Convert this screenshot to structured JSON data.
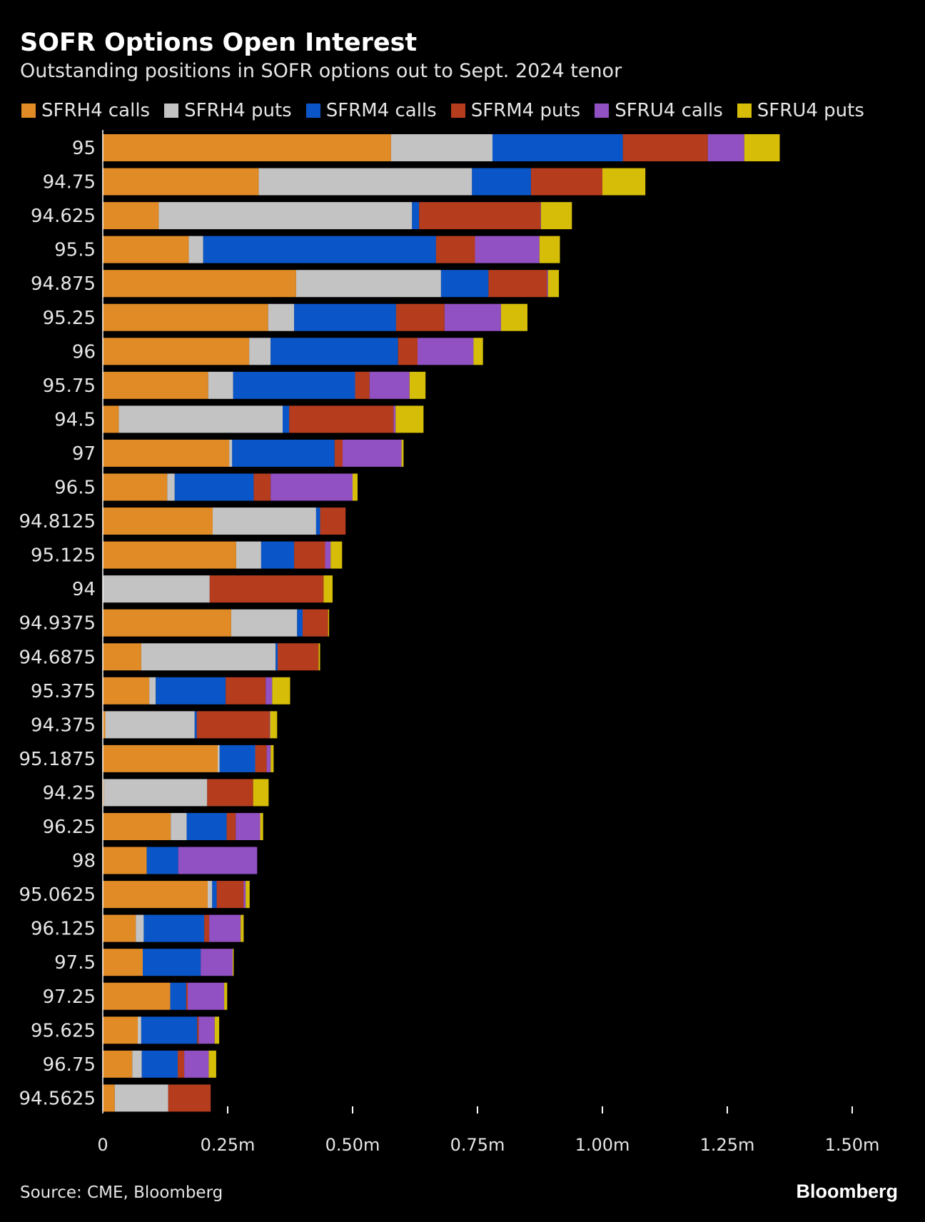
{
  "title": "SOFR Options Open Interest",
  "subtitle": "Outstanding positions in SOFR options out to Sept. 2024 tenor",
  "source": "Source: CME, Bloomberg",
  "brand": "Bloomberg",
  "colors": [
    "#e08b26",
    "#c3c3c3",
    "#0a56c8",
    "#b53d1e",
    "#9251c2",
    "#d6bd08"
  ],
  "chart_data": {
    "type": "bar",
    "orientation": "horizontal",
    "stacked": true,
    "title": "SOFR Options Open Interest",
    "xlabel": "",
    "ylabel": "",
    "xlim": [
      0,
      1.5
    ],
    "x_ticks": [
      0,
      0.25,
      0.5,
      0.75,
      1.0,
      1.25,
      1.5
    ],
    "x_tick_labels": [
      "0",
      "0.25m",
      "0.50m",
      "0.75m",
      "1.00m",
      "1.25m",
      "1.50m"
    ],
    "legend_position": "top",
    "categories": [
      "95",
      "94.75",
      "94.625",
      "95.5",
      "94.875",
      "95.25",
      "96",
      "95.75",
      "94.5",
      "97",
      "96.5",
      "94.8125",
      "95.125",
      "94",
      "94.9375",
      "94.6875",
      "95.375",
      "94.375",
      "95.1875",
      "94.25",
      "96.25",
      "98",
      "95.0625",
      "96.125",
      "97.5",
      "97.25",
      "95.625",
      "96.75",
      "94.5625"
    ],
    "series": [
      {
        "name": "SFRH4 calls",
        "values": [
          0.577,
          0.312,
          0.112,
          0.172,
          0.387,
          0.331,
          0.293,
          0.211,
          0.032,
          0.253,
          0.129,
          0.22,
          0.267,
          0.0,
          0.257,
          0.077,
          0.093,
          0.005,
          0.23,
          0.002,
          0.136,
          0.088,
          0.21,
          0.066,
          0.08,
          0.135,
          0.07,
          0.059,
          0.024
        ]
      },
      {
        "name": "SFRH4 puts",
        "values": [
          0.203,
          0.427,
          0.507,
          0.029,
          0.29,
          0.052,
          0.043,
          0.05,
          0.328,
          0.006,
          0.015,
          0.207,
          0.05,
          0.214,
          0.132,
          0.269,
          0.013,
          0.179,
          0.004,
          0.207,
          0.032,
          0.0,
          0.009,
          0.016,
          0.0,
          0.0,
          0.007,
          0.019,
          0.107
        ]
      },
      {
        "name": "SFRM4 calls",
        "values": [
          0.261,
          0.118,
          0.014,
          0.466,
          0.095,
          0.204,
          0.255,
          0.244,
          0.013,
          0.205,
          0.158,
          0.008,
          0.066,
          0.0,
          0.011,
          0.004,
          0.14,
          0.004,
          0.071,
          0.0,
          0.08,
          0.063,
          0.009,
          0.121,
          0.116,
          0.032,
          0.112,
          0.072,
          0.0
        ]
      },
      {
        "name": "SFRM4 puts",
        "values": [
          0.17,
          0.143,
          0.243,
          0.078,
          0.117,
          0.097,
          0.039,
          0.029,
          0.209,
          0.016,
          0.034,
          0.051,
          0.062,
          0.228,
          0.051,
          0.082,
          0.08,
          0.146,
          0.023,
          0.092,
          0.018,
          0.0,
          0.054,
          0.01,
          0.0,
          0.003,
          0.003,
          0.013,
          0.085
        ]
      },
      {
        "name": "SFRU4 calls",
        "values": [
          0.073,
          0.0,
          0.001,
          0.129,
          0.002,
          0.113,
          0.112,
          0.08,
          0.004,
          0.118,
          0.164,
          0.0,
          0.011,
          0.0,
          0.0,
          0.0,
          0.013,
          0.001,
          0.008,
          0.0,
          0.049,
          0.158,
          0.004,
          0.063,
          0.064,
          0.073,
          0.032,
          0.049,
          0.0
        ]
      },
      {
        "name": "SFRU4 puts",
        "values": [
          0.071,
          0.086,
          0.062,
          0.041,
          0.022,
          0.053,
          0.019,
          0.032,
          0.056,
          0.004,
          0.01,
          0.0,
          0.023,
          0.018,
          0.002,
          0.003,
          0.036,
          0.014,
          0.006,
          0.031,
          0.006,
          0.0,
          0.008,
          0.006,
          0.002,
          0.006,
          0.009,
          0.015,
          0.0
        ]
      }
    ]
  }
}
